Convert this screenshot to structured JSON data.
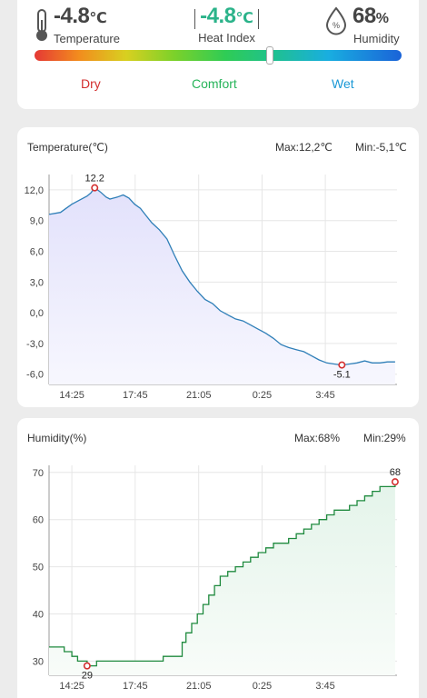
{
  "summary": {
    "temperature": {
      "value": "-4.8",
      "unit": "℃",
      "label": "Temperature"
    },
    "heat_index": {
      "value": "-4.8",
      "unit": "℃",
      "label": "Heat Index"
    },
    "humidity": {
      "value": "68",
      "unit": "%",
      "label": "Humidity",
      "icon_text": "%"
    },
    "comfort_scale": {
      "labels": [
        "Dry",
        "Comfort",
        "Wet"
      ],
      "marker_level": 0.64
    }
  },
  "temp_chart": {
    "title": "Temperature(℃)",
    "max_label": "Max:12,2℃",
    "min_label": "Min:-5,1℃"
  },
  "hum_chart": {
    "title": "Humidity(%)",
    "max_label": "Max:68%",
    "min_label": "Min:29%"
  },
  "chart_data": [
    {
      "type": "area",
      "title": "Temperature(℃)",
      "x_ticks": [
        "14:25",
        "17:45",
        "21:05",
        "0:25",
        "3:45"
      ],
      "x_hours": [
        0,
        3.33,
        6.67,
        10.0,
        13.33
      ],
      "xlim_hours": [
        -1.2,
        17.1
      ],
      "y_ticks": [
        "12,0",
        "9,0",
        "6,0",
        "3,0",
        "0,0",
        "-3,0",
        "-6,0"
      ],
      "y_tick_values": [
        12,
        9,
        6,
        3,
        0,
        -3,
        -6
      ],
      "ylim": [
        -7,
        13.5
      ],
      "grid": true,
      "series": [
        {
          "x_hours": [
            -1.2,
            -0.6,
            -0.3,
            0.0,
            0.4,
            0.8,
            1.0,
            1.2,
            1.5,
            1.8,
            2.0,
            2.2,
            2.4,
            2.7,
            3.0,
            3.3,
            3.6,
            3.9,
            4.2,
            4.6,
            5.0,
            5.4,
            5.8,
            6.2,
            6.6,
            7.0,
            7.4,
            7.8,
            8.2,
            8.6,
            9.0,
            9.4,
            9.8,
            10.2,
            10.6,
            11.0,
            11.4,
            11.8,
            12.2,
            12.6,
            13.0,
            13.4,
            13.8,
            14.2,
            14.6,
            15.0,
            15.4,
            15.8,
            16.2,
            16.6,
            17.0
          ],
          "y": [
            9.6,
            9.8,
            10.2,
            10.6,
            11.0,
            11.4,
            11.7,
            12.2,
            11.8,
            11.3,
            11.1,
            11.2,
            11.3,
            11.5,
            11.2,
            10.6,
            10.2,
            9.5,
            8.8,
            8.1,
            7.2,
            5.6,
            4.1,
            3.0,
            2.1,
            1.3,
            0.9,
            0.2,
            -0.2,
            -0.6,
            -0.8,
            -1.2,
            -1.6,
            -2.0,
            -2.5,
            -3.1,
            -3.4,
            -3.6,
            -3.8,
            -4.2,
            -4.6,
            -4.9,
            -5.0,
            -5.1,
            -5.0,
            -4.9,
            -4.7,
            -4.9,
            -4.9,
            -4.8,
            -4.8
          ],
          "max_point": {
            "x_hours": 1.2,
            "y": 12.2,
            "label": "12.2"
          },
          "min_point": {
            "x_hours": 14.2,
            "y": -5.1,
            "label": "-5.1"
          }
        }
      ]
    },
    {
      "type": "area",
      "title": "Humidity(%)",
      "x_ticks": [
        "14:25",
        "17:45",
        "21:05",
        "0:25",
        "3:45"
      ],
      "x_hours": [
        0,
        3.33,
        6.67,
        10.0,
        13.33
      ],
      "xlim_hours": [
        -1.2,
        17.1
      ],
      "y_ticks": [
        "70",
        "60",
        "50",
        "40",
        "30"
      ],
      "y_tick_values": [
        70,
        60,
        50,
        40,
        30
      ],
      "ylim": [
        27,
        71.5
      ],
      "grid": true,
      "series": [
        {
          "x_hours": [
            -1.2,
            -0.7,
            -0.4,
            0.0,
            0.3,
            0.8,
            1.3,
            1.8,
            2.3,
            2.8,
            3.3,
            3.8,
            4.3,
            4.8,
            5.3,
            5.8,
            6.0,
            6.3,
            6.6,
            6.9,
            7.2,
            7.5,
            7.8,
            8.2,
            8.6,
            9.0,
            9.4,
            9.8,
            10.2,
            10.6,
            11.0,
            11.4,
            11.8,
            12.2,
            12.6,
            13.0,
            13.4,
            13.8,
            14.2,
            14.6,
            15.0,
            15.4,
            15.8,
            16.2,
            16.6,
            17.0
          ],
          "y": [
            33,
            33,
            32,
            31,
            30,
            29,
            30,
            30,
            30,
            30,
            30,
            30,
            30,
            31,
            31,
            34,
            36,
            38,
            40,
            42,
            44,
            46,
            48,
            49,
            50,
            51,
            52,
            53,
            54,
            55,
            55,
            56,
            57,
            58,
            59,
            60,
            61,
            62,
            62,
            63,
            64,
            65,
            66,
            67,
            67,
            68
          ],
          "max_point": {
            "x_hours": 17.0,
            "y": 68,
            "label": "68"
          },
          "min_point": {
            "x_hours": 0.8,
            "y": 29,
            "label": "29"
          }
        }
      ]
    }
  ]
}
